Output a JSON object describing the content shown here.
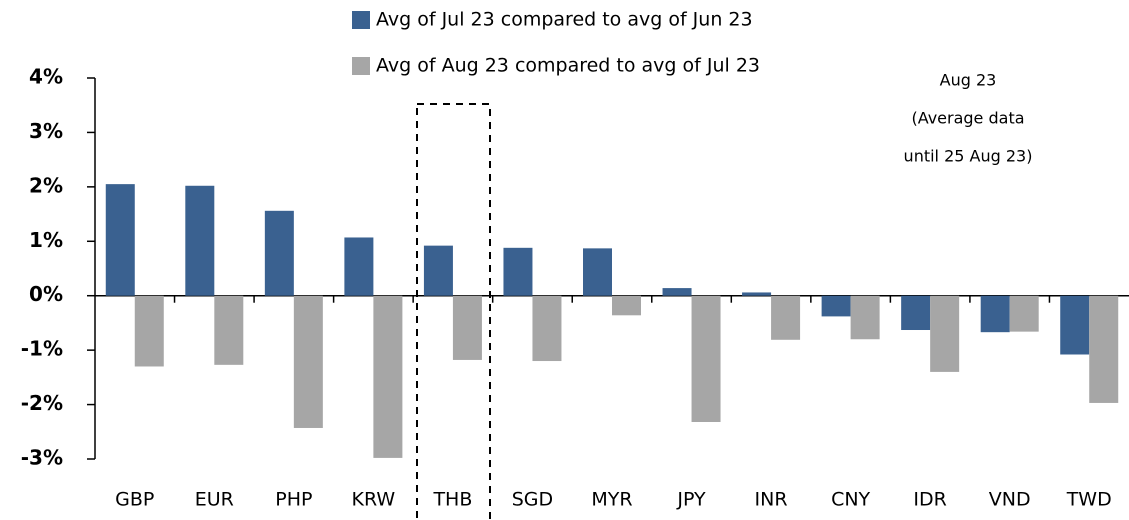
{
  "chart_data": {
    "type": "bar",
    "categories": [
      "GBP",
      "EUR",
      "PHP",
      "KRW",
      "THB",
      "SGD",
      "MYR",
      "JPY",
      "INR",
      "CNY",
      "IDR",
      "VND",
      "TWD"
    ],
    "series": [
      {
        "name": "Avg of Jul 23 compared to avg of Jun 23",
        "color": "#3a6190",
        "values": [
          2.05,
          2.02,
          1.56,
          1.07,
          0.92,
          0.88,
          0.87,
          0.14,
          0.06,
          -0.38,
          -0.63,
          -0.67,
          -1.08
        ]
      },
      {
        "name": "Avg of Aug 23 compared to avg of Jul 23",
        "color": "#a6a6a6",
        "values": [
          -1.3,
          -1.27,
          -2.43,
          -2.98,
          -1.18,
          -1.2,
          -0.36,
          -2.32,
          -0.81,
          -0.8,
          -1.4,
          -0.66,
          -1.97
        ]
      }
    ],
    "ylim": [
      -3,
      4
    ],
    "yticks": [
      {
        "value": 4,
        "label": "4%"
      },
      {
        "value": 3,
        "label": "3%"
      },
      {
        "value": 2,
        "label": "2%"
      },
      {
        "value": 1,
        "label": "1%"
      },
      {
        "value": 0,
        "label": "0%"
      },
      {
        "value": -1,
        "label": "-1%"
      },
      {
        "value": -2,
        "label": "-2%"
      },
      {
        "value": -3,
        "label": "-3%"
      }
    ],
    "annotation": [
      "Aug 23",
      "(Average data",
      "until 25 Aug 23)"
    ],
    "grid": false
  }
}
